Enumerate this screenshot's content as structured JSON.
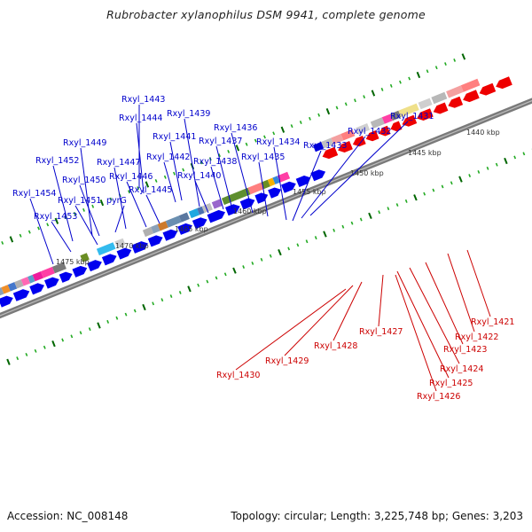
{
  "title": "Rubrobacter xylanophilus DSM 9941, complete genome",
  "footer": {
    "accession": "Accession: NC_008148",
    "topology": "Topology: circular; Length: 3,225,748 bp; Genes: 3,203"
  },
  "colors": {
    "forward": "#0000ee",
    "reverse": "#ee0000",
    "forward_label": "#0000cc",
    "reverse_label": "#cc0000",
    "tick_major": "#006600",
    "tick_minor": "#22aa22",
    "backbone": "#7a7a7a"
  },
  "scale_labels": [
    "1440 kbp",
    "1445 kbp",
    "1450 kbp",
    "1455 kbp",
    "1460 kbp",
    "1465 kbp",
    "1470 kbp",
    "1475 kbp"
  ],
  "forward_genes": [
    "Rxyl_1443",
    "Rxyl_1444",
    "Rxyl_1439",
    "Rxyl_1441",
    "Rxyl_1436",
    "Rxyl_1437",
    "Rxyl_1434",
    "Rxyl_1433",
    "Rxyl_1432",
    "Rxyl_1431",
    "Rxyl_1449",
    "Rxyl_1442",
    "Rxyl_1438",
    "Rxyl_1435",
    "Rxyl_1452",
    "Rxyl_1447",
    "Rxyl_1446",
    "Rxyl_1440",
    "Rxyl_1450",
    "Rxyl_1445",
    "Rxyl_1454",
    "Rxyl_1451",
    "pyrG",
    "Rxyl_1453"
  ],
  "reverse_genes": [
    "Rxyl_1421",
    "Rxyl_1422",
    "Rxyl_1423",
    "Rxyl_1424",
    "Rxyl_1425",
    "Rxyl_1426",
    "Rxyl_1427",
    "Rxyl_1428",
    "Rxyl_1429",
    "Rxyl_1430"
  ]
}
